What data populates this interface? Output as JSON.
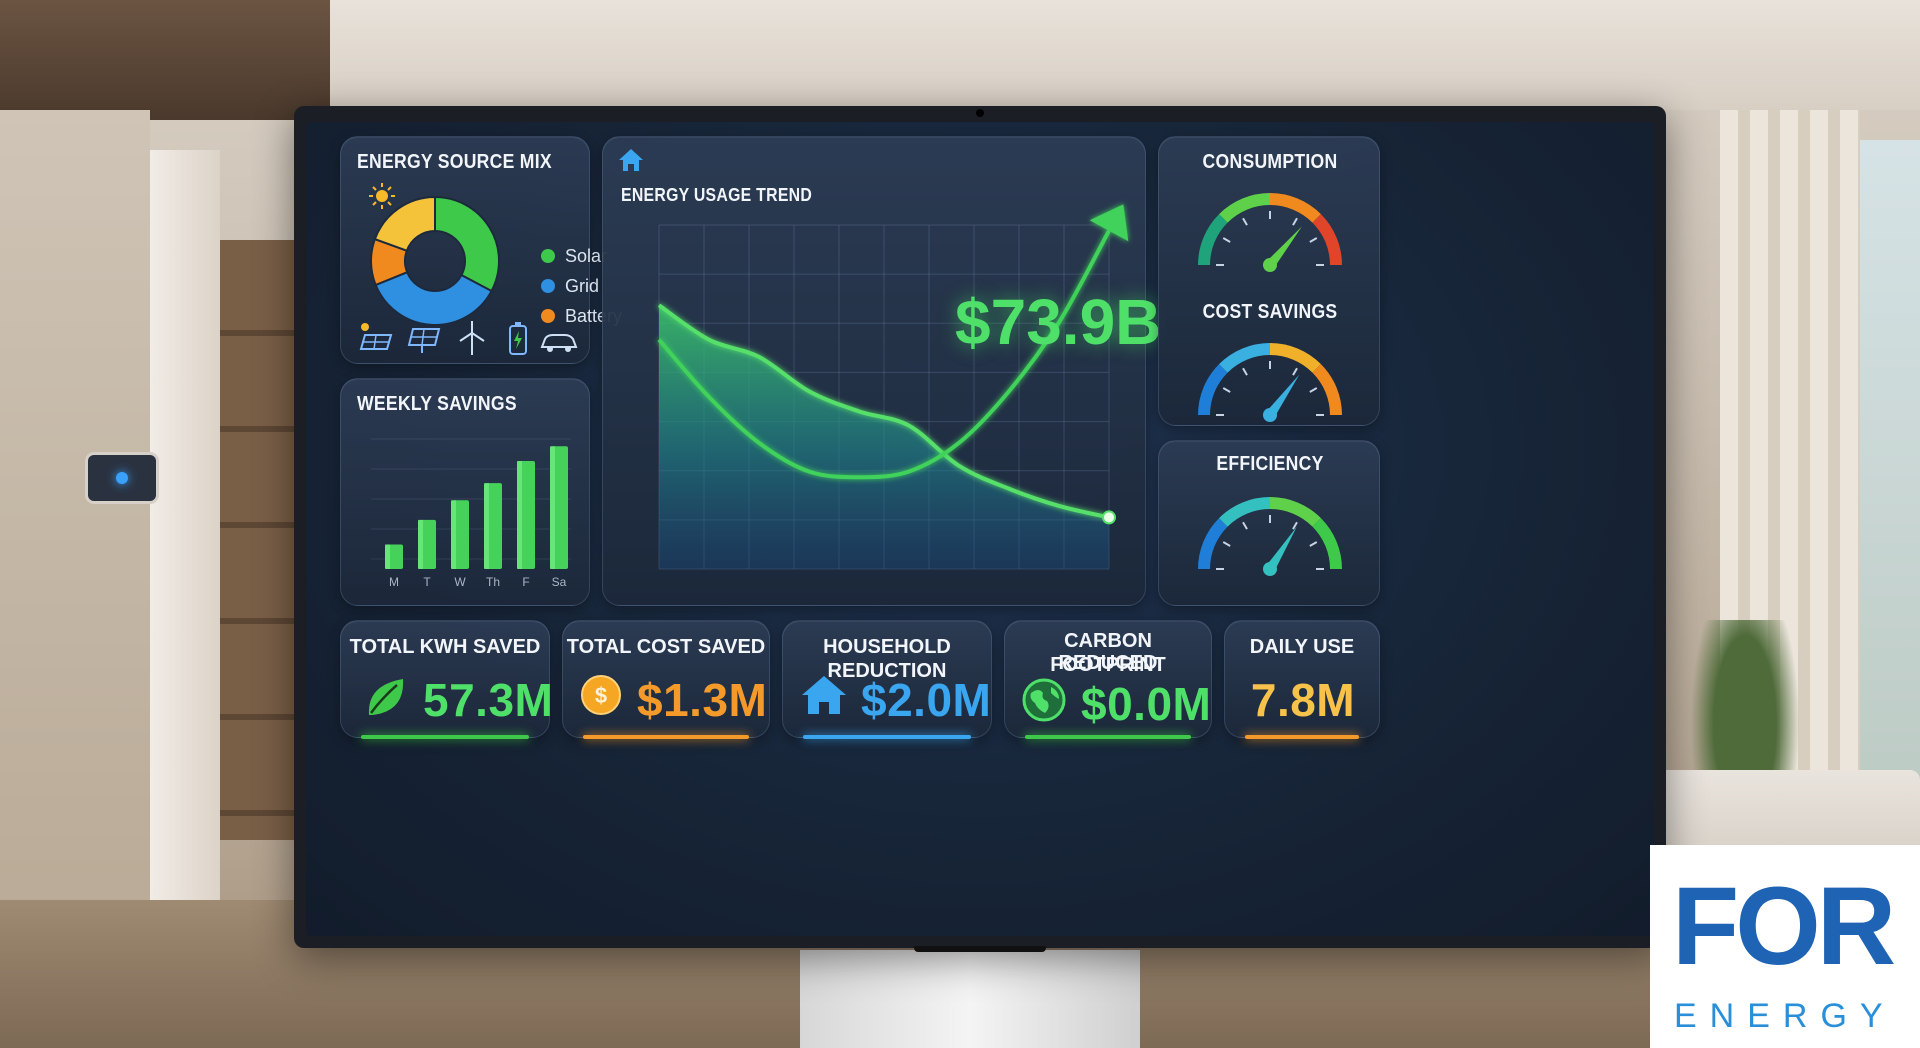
{
  "energy_source_mix": {
    "title": "ENERGY SOURCE MIX",
    "legend": [
      {
        "label": "Solar",
        "color": "#3ec94a"
      },
      {
        "label": "Grid",
        "color": "#2f8fe0"
      },
      {
        "label": "Battery",
        "color": "#f08a1e"
      }
    ],
    "icons": [
      "sun-icon",
      "solar-panel-icon",
      "solar-array-icon",
      "wind-turbine-icon",
      "battery-icon",
      "car-icon"
    ]
  },
  "weekly_savings": {
    "title": "WEEKLY SAVINGS",
    "chart_data": {
      "type": "bar",
      "categories": [
        "M",
        "T",
        "W",
        "Th",
        "F",
        "Sa"
      ],
      "values": [
        20,
        40,
        56,
        70,
        88,
        100
      ],
      "ylim": [
        0,
        110
      ]
    }
  },
  "energy_usage_trend": {
    "title": "ENERGY USAGE TREND",
    "headline_value": "$73.9B",
    "chart_data": {
      "type": "line",
      "series": [
        {
          "values": [
            92,
            80,
            74,
            62,
            55,
            50,
            36,
            28,
            22,
            18
          ]
        },
        {
          "values": [
            80,
            60,
            44,
            34,
            32,
            34,
            44,
            62,
            86,
            118
          ]
        }
      ],
      "ylim": [
        0,
        120
      ]
    }
  },
  "gauges": [
    {
      "title": "CONSUMPTION",
      "level": 0.72,
      "colors": [
        "#1fa37a",
        "#5fd04a",
        "#f08a1e",
        "#e0452a"
      ]
    },
    {
      "title": "COST SAVINGS",
      "level": 0.7,
      "colors": [
        "#1f7fd8",
        "#3ab0e0",
        "#f0b02a",
        "#f08a1e"
      ]
    },
    {
      "title": "EFFICIENCY",
      "level": 0.68,
      "colors": [
        "#1f7fd8",
        "#35c0c0",
        "#5fd04a",
        "#3ec94a"
      ]
    }
  ],
  "kpis": [
    {
      "title": "TOTAL KWH SAVED",
      "value": "57.3M",
      "icon": "leaf-icon",
      "color": "#4fe06a"
    },
    {
      "title": "TOTAL COST SAVED",
      "value": "$1.3M",
      "icon": "coin-icon",
      "color": "#f39a2a"
    },
    {
      "title": "HOUSEHOLD REDUCTION",
      "value": "$2.0M",
      "icon": "house-icon",
      "color": "#3aa6f0"
    },
    {
      "title": "CARBON FOOTPRINT",
      "title2": "REDUCED",
      "value": "$0.0M",
      "icon": "globe-icon",
      "color": "#4fe06a"
    },
    {
      "title": "DAILY USE",
      "value": "7.8M",
      "icon": "",
      "color": "#f7c24a"
    }
  ],
  "logo": {
    "word": "FOR",
    "sub": "ENERGY"
  }
}
